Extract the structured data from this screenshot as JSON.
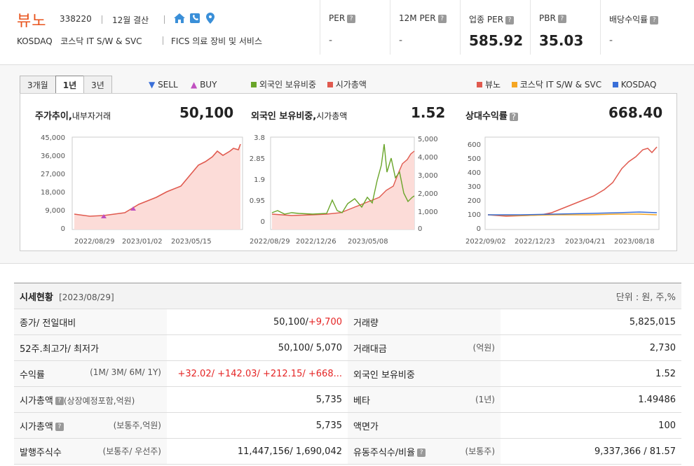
{
  "header": {
    "name": "뷰노",
    "code": "338220",
    "settle": "12월 결산",
    "market": "KOSDAQ",
    "industry": "코스닥 IT S/W & SVC",
    "fics": "FICS 의료 장비 및 서비스"
  },
  "metrics": [
    {
      "label": "PER",
      "value": "-"
    },
    {
      "label": "12M PER",
      "value": "-"
    },
    {
      "label": "업종 PER",
      "value": "585.92"
    },
    {
      "label": "PBR",
      "value": "35.03"
    },
    {
      "label": "배당수익률",
      "value": "-"
    }
  ],
  "tabs": [
    "3개월",
    "1년",
    "3년"
  ],
  "sellbuy": {
    "sell": "SELL",
    "buy": "BUY"
  },
  "legend1": {
    "a": "외국인 보유비중",
    "b": "시가총액"
  },
  "legend2": {
    "a": "뷰노",
    "b": "코스닥 IT S/W & SVC",
    "c": "KOSDAQ"
  },
  "colors": {
    "accent": "#e8531c",
    "price": "#e05a4f",
    "green": "#6aa52a",
    "orange": "#f5a623",
    "blue": "#3a6fd8"
  },
  "panels": {
    "p1": {
      "title": "주가추이,",
      "sub": "내부자거래",
      "value": "50,100",
      "yticks": [
        "45,000",
        "36,000",
        "27,000",
        "18,000",
        "9,000",
        "0"
      ],
      "xticks": [
        "2022/08/29",
        "2023/01/02",
        "2023/05/15"
      ]
    },
    "p2": {
      "title": "외국인 보유비중,",
      "sub": "시가총액",
      "value": "1.52",
      "yticks": [
        "3.8",
        "2.85",
        "1.9",
        "0.95",
        "0"
      ],
      "y2ticks": [
        "5,000",
        "4,000",
        "3,000",
        "2,000",
        "1,000",
        "0"
      ],
      "xticks": [
        "2022/08/29",
        "2022/12/26",
        "2023/05/08"
      ]
    },
    "p3": {
      "title": "상대수익률",
      "value": "668.40",
      "yticks": [
        "600",
        "500",
        "400",
        "300",
        "200",
        "100",
        "0"
      ],
      "xticks": [
        "2022/09/02",
        "2022/12/23",
        "2023/04/21",
        "2023/08/18"
      ]
    }
  },
  "table": {
    "title": "시세현황",
    "date": "[2023/08/29]",
    "unit": "단위 : 원, 주,%",
    "rows": [
      {
        "k1": "종가/ 전일대비",
        "u1": "",
        "v1a": "50,100/",
        "v1b": "+9,700",
        "k2": "거래량",
        "u2": "",
        "v2": "5,825,015"
      },
      {
        "k1": "52주.최고가/ 최저가",
        "u1": "",
        "v1a": "50,100/ 5,070",
        "v1b": "",
        "k2": "거래대금",
        "u2": "(억원)",
        "v2": "2,730"
      },
      {
        "k1": "수익률",
        "u1": "(1M/ 3M/ 6M/ 1Y)",
        "v1a": "",
        "v1b": "+32.02/ +142.03/ +212.15/ +668...",
        "k2": "외국인 보유비중",
        "u2": "",
        "v2": "1.52"
      },
      {
        "k1": "시가총액",
        "u1": "(상장예정포함,억원)",
        "v1a": "5,735",
        "v1b": "",
        "k2": "베타",
        "u2": "(1년)",
        "v2": "1.49486"
      },
      {
        "k1": "시가총액",
        "u1": "(보통주,억원)",
        "v1a": "5,735",
        "v1b": "",
        "k2": "액면가",
        "u2": "",
        "v2": "100"
      },
      {
        "k1": "발행주식수",
        "u1": "(보통주/ 우선주)",
        "v1a": "11,447,156/ 1,690,042",
        "v1b": "",
        "k2": "유동주식수/비율",
        "u2": "(보통주)",
        "v2": "9,337,366 / 81.57"
      }
    ]
  }
}
